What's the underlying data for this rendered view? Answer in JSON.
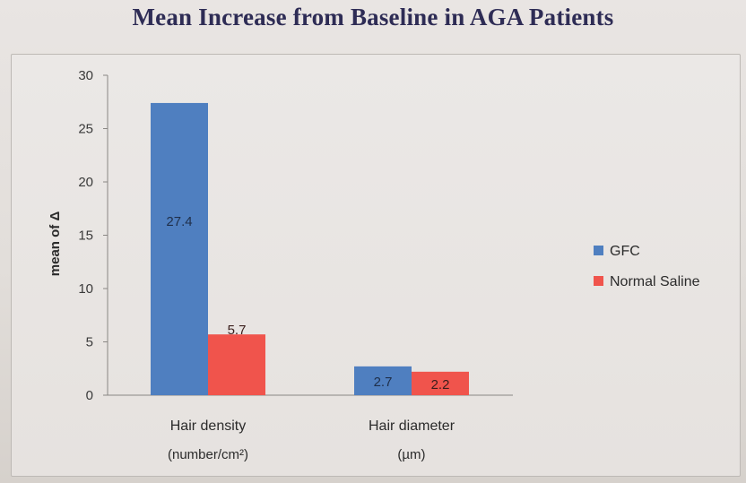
{
  "chart_data": {
    "type": "bar",
    "title": "Mean Increase from Baseline in AGA Patients",
    "ylabel": "mean of Δ",
    "xlabel": "",
    "ylim": [
      0,
      30
    ],
    "yticks": [
      0,
      5,
      10,
      15,
      20,
      25,
      30
    ],
    "grid": false,
    "legend_position": "right",
    "categories": [
      {
        "label": "Hair density",
        "unit": "(number/cm²)"
      },
      {
        "label": "Hair diameter",
        "unit": "(µm)"
      }
    ],
    "series": [
      {
        "name": "GFC",
        "color": "#4f7fc0",
        "values": [
          27.4,
          2.7
        ],
        "data_labels": [
          "27.4",
          "2.7"
        ]
      },
      {
        "name": "Normal Saline",
        "color": "#f0544c",
        "values": [
          5.7,
          2.2
        ],
        "data_labels": [
          "5.7",
          "2.2"
        ]
      }
    ]
  }
}
